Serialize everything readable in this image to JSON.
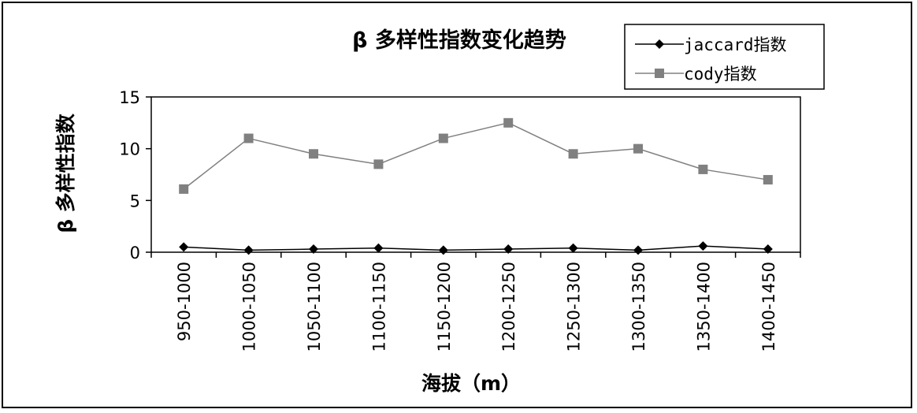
{
  "chart_data": {
    "type": "line",
    "title": "β 多样性指数变化趋势",
    "xlabel": "海拔（m）",
    "ylabel": "β 多样性指数",
    "categories": [
      "950-1000",
      "1000-1050",
      "1050-1100",
      "1100-1150",
      "1150-1200",
      "1200-1250",
      "1250-1300",
      "1300-1350",
      "1350-1400",
      "1400-1450"
    ],
    "ylim": [
      0,
      15
    ],
    "yticks": [
      0,
      5,
      10,
      15
    ],
    "grid": false,
    "legend_position": "top-right",
    "series": [
      {
        "name": "jaccard指数",
        "marker": "diamond",
        "color": "#000000",
        "values": [
          0.5,
          0.2,
          0.3,
          0.4,
          0.2,
          0.3,
          0.4,
          0.2,
          0.6,
          0.3
        ]
      },
      {
        "name": "cody指数",
        "marker": "square",
        "color": "#808080",
        "values": [
          6.1,
          11.0,
          9.5,
          8.5,
          11.0,
          12.5,
          9.5,
          10.0,
          8.0,
          7.0
        ]
      }
    ]
  }
}
